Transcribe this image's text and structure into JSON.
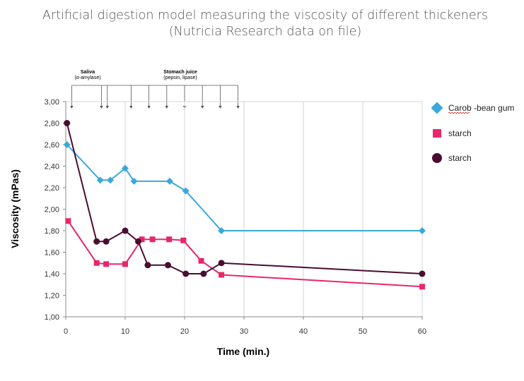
{
  "chart_data": {
    "type": "line",
    "title_line1": "Artificial digestion model measuring the viscosity of different thickeners",
    "title_line2": "(Nutricia Research data on file)",
    "xlabel": "Time (min.)",
    "ylabel": "Viscosity (mPas)",
    "xlim": [
      0,
      60
    ],
    "ylim": [
      1.0,
      3.0
    ],
    "x_ticks": [
      "0",
      "10",
      "20",
      "30",
      "40",
      "50",
      "60"
    ],
    "x_tick_values": [
      0,
      10,
      20,
      30,
      40,
      50,
      60
    ],
    "y_ticks": [
      "1,00",
      "1,20",
      "1,40",
      "1,60",
      "1,80",
      "2,00",
      "2,20",
      "2,40",
      "2,60",
      "2,80",
      "3,00"
    ],
    "y_tick_values": [
      1.0,
      1.2,
      1.4,
      1.6,
      1.8,
      2.0,
      2.2,
      2.4,
      2.6,
      2.8,
      3.0
    ],
    "grid": "vertical",
    "legend_position": "right",
    "annotations": {
      "saliva_label": "Saliva",
      "saliva_sub": "(α-amylase)",
      "stomach_label": "Stomach juice",
      "stomach_sub": "(pepsin, lipase)",
      "saliva_arrows_x": [
        1,
        6
      ],
      "stomach_arrows_x": [
        7,
        11,
        14,
        17,
        20,
        23,
        26,
        29
      ]
    },
    "series": [
      {
        "name": "Carob -bean gum",
        "color": "#3aa8dc",
        "marker": "diamond",
        "x": [
          0.2,
          5.8,
          7.5,
          10,
          11.5,
          17.5,
          20.2,
          26.2,
          60
        ],
        "y": [
          2.6,
          2.27,
          2.27,
          2.38,
          2.26,
          2.26,
          2.17,
          1.8,
          1.8
        ]
      },
      {
        "name": "starch",
        "color": "#e8266c",
        "marker": "square",
        "x": [
          0.4,
          5.2,
          6.8,
          10,
          12.8,
          14.6,
          17.4,
          19.8,
          22.8,
          26.2,
          60
        ],
        "y": [
          1.89,
          1.5,
          1.49,
          1.49,
          1.72,
          1.72,
          1.72,
          1.71,
          1.52,
          1.39,
          1.28
        ]
      },
      {
        "name": "starch",
        "color": "#4a0d32",
        "marker": "circle",
        "x": [
          0.2,
          5.2,
          6.8,
          10,
          12.2,
          13.8,
          17.2,
          20.2,
          23.2,
          26.2,
          60
        ],
        "y": [
          2.8,
          1.7,
          1.7,
          1.8,
          1.7,
          1.48,
          1.48,
          1.4,
          1.4,
          1.5,
          1.4
        ]
      }
    ]
  }
}
